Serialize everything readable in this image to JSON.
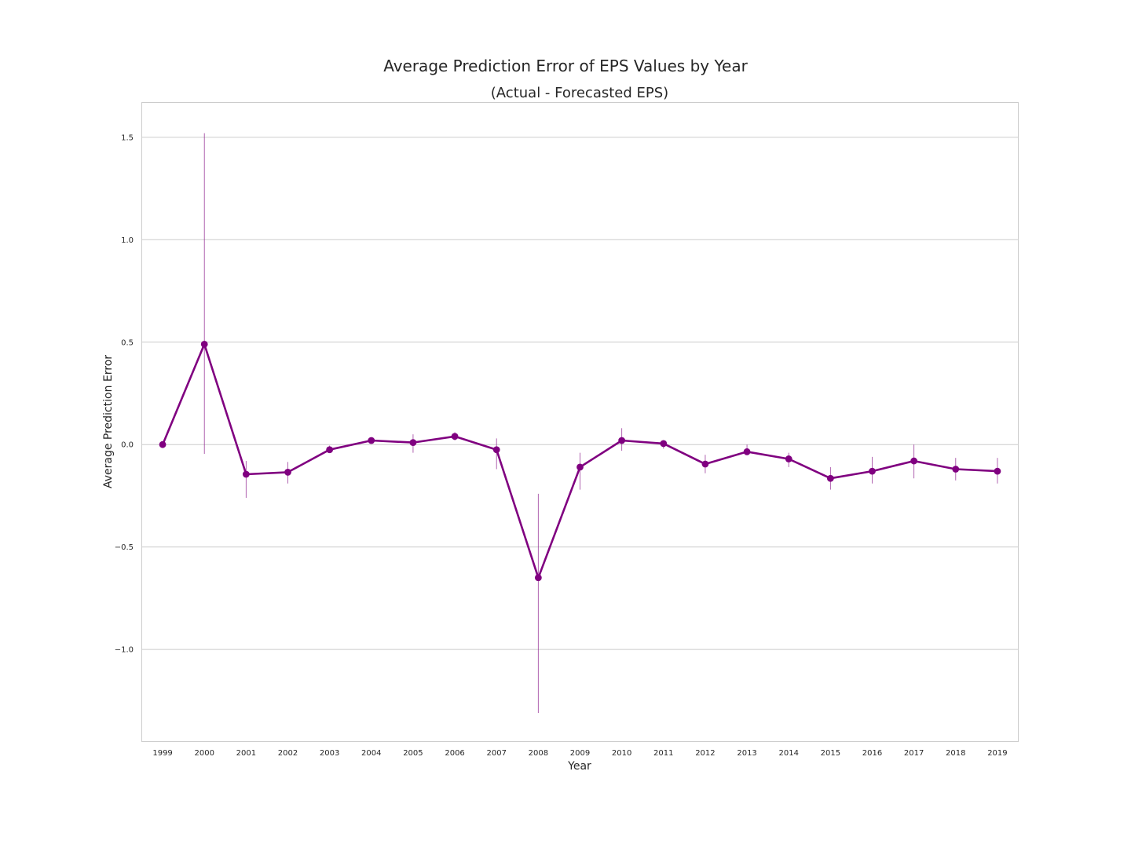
{
  "chart_data": {
    "type": "line",
    "title": "Average Prediction Error of EPS Values by Year",
    "subtitle": "(Actual - Forecasted EPS)",
    "xlabel": "Year",
    "ylabel": "Average Prediction Error",
    "ylim": [
      -1.45,
      1.67
    ],
    "yticks": [
      1.5,
      1.0,
      0.5,
      0.0,
      -0.5,
      -1.0
    ],
    "ytick_labels": [
      "1.5",
      "1.0",
      "0.5",
      "0.0",
      "−0.5",
      "−1.0"
    ],
    "grid": "horizontal",
    "categories": [
      "1999",
      "2000",
      "2001",
      "2002",
      "2003",
      "2004",
      "2005",
      "2006",
      "2007",
      "2008",
      "2009",
      "2010",
      "2011",
      "2012",
      "2013",
      "2014",
      "2015",
      "2016",
      "2017",
      "2018",
      "2019"
    ],
    "series": [
      {
        "color": "#800080",
        "values": [
          0.0,
          0.49,
          -0.145,
          -0.135,
          -0.025,
          0.02,
          0.01,
          0.04,
          -0.025,
          -0.65,
          -0.11,
          0.02,
          0.005,
          -0.095,
          -0.035,
          -0.07,
          -0.165,
          -0.13,
          -0.08,
          -0.12,
          -0.13
        ],
        "ci_low": [
          0.0,
          -0.045,
          -0.26,
          -0.19,
          -0.04,
          0.005,
          -0.04,
          0.02,
          -0.12,
          -1.31,
          -0.22,
          -0.03,
          -0.02,
          -0.14,
          -0.05,
          -0.11,
          -0.22,
          -0.19,
          -0.165,
          -0.175,
          -0.19
        ],
        "ci_high": [
          0.0,
          1.52,
          -0.08,
          -0.085,
          -0.005,
          0.03,
          0.05,
          0.06,
          0.03,
          -0.24,
          -0.04,
          0.08,
          0.02,
          -0.05,
          0.0,
          -0.04,
          -0.11,
          -0.06,
          0.0,
          -0.065,
          -0.065
        ]
      }
    ]
  }
}
